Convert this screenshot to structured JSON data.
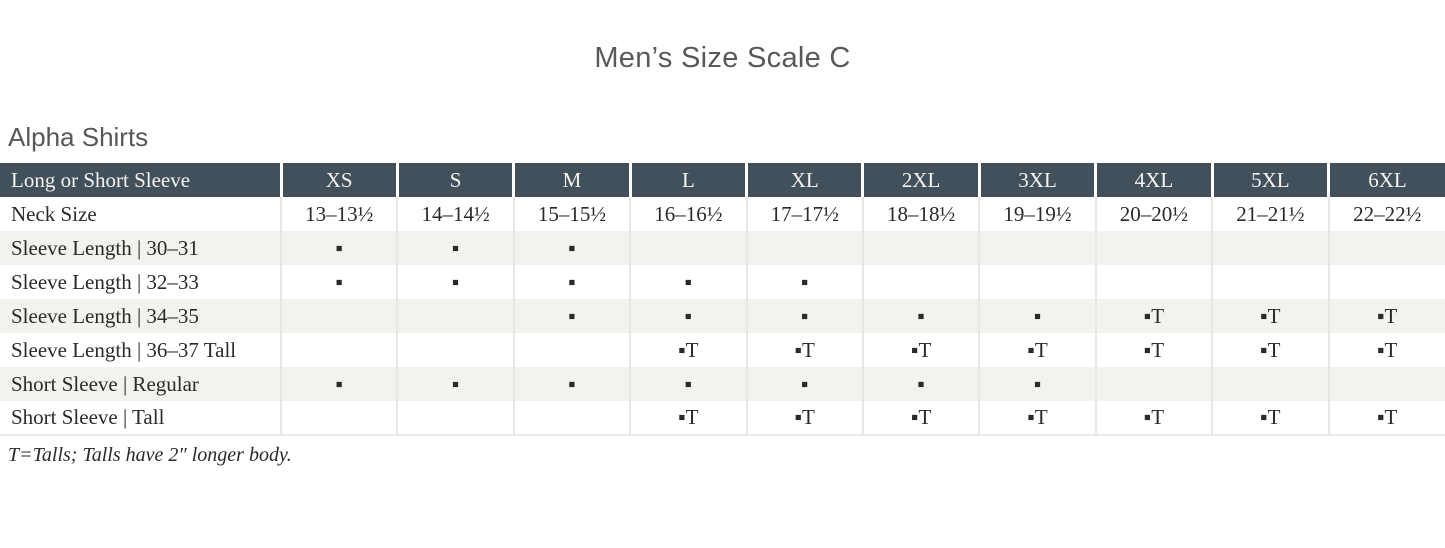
{
  "page": {
    "title": "Men’s Size Scale C",
    "section_title": "Alpha Shirts",
    "footnote": "T=Talls; Talls have 2″ longer body."
  },
  "colors": {
    "header_bg": "#41505a",
    "header_text": "#f4f4f2",
    "alt_row_bg": "#f4f2ef",
    "body_text": "#2b2a27",
    "heading_text": "#58595b"
  },
  "legend": {
    "available_marker": "▪",
    "tall_marker": "▪T"
  },
  "table": {
    "corner_label": "Long or Short Sleeve",
    "columns": [
      "XS",
      "S",
      "M",
      "L",
      "XL",
      "2XL",
      "3XL",
      "4XL",
      "5XL",
      "6XL"
    ],
    "rows": [
      {
        "label": "Neck Size",
        "cells": [
          "13–13½",
          "14–14½",
          "15–15½",
          "16–16½",
          "17–17½",
          "18–18½",
          "19–19½",
          "20–20½",
          "21–21½",
          "22–22½"
        ]
      },
      {
        "label": "Sleeve Length | 30–31",
        "cells": [
          "▪",
          "▪",
          "▪",
          "",
          "",
          "",
          "",
          "",
          "",
          ""
        ]
      },
      {
        "label": "Sleeve Length | 32–33",
        "cells": [
          "▪",
          "▪",
          "▪",
          "▪",
          "▪",
          "",
          "",
          "",
          "",
          ""
        ]
      },
      {
        "label": "Sleeve Length | 34–35",
        "cells": [
          "",
          "",
          "▪",
          "▪",
          "▪",
          "▪",
          "▪",
          "▪T",
          "▪T",
          "▪T"
        ]
      },
      {
        "label": "Sleeve Length | 36–37 Tall",
        "cells": [
          "",
          "",
          "",
          "▪T",
          "▪T",
          "▪T",
          "▪T",
          "▪T",
          "▪T",
          "▪T"
        ]
      },
      {
        "label": "Short Sleeve | Regular",
        "cells": [
          "▪",
          "▪",
          "▪",
          "▪",
          "▪",
          "▪",
          "▪",
          "",
          "",
          ""
        ]
      },
      {
        "label": "Short Sleeve | Tall",
        "cells": [
          "",
          "",
          "",
          "▪T",
          "▪T",
          "▪T",
          "▪T",
          "▪T",
          "▪T",
          "▪T"
        ]
      }
    ]
  }
}
